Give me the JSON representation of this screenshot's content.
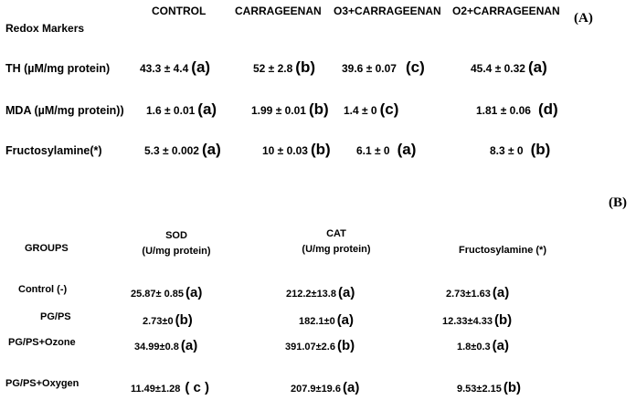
{
  "panelA": {
    "tag": "(A)",
    "row_header": "Redox Markers",
    "columns": [
      "CONTROL",
      "CARRAGEENAN",
      "O3+CARRAGEENAN",
      "O2+CARRAGEENAN"
    ],
    "rows": [
      {
        "label": "TH  (µM/mg protein)",
        "cells": [
          {
            "value": "43.3 ± 4.4",
            "letter": "(a)"
          },
          {
            "value": "52 ± 2.8",
            "letter": "(b)"
          },
          {
            "value": "39.6 ± 0.07",
            "letter": "(c)"
          },
          {
            "value": "45.4 ± 0.32",
            "letter": "(a)"
          }
        ]
      },
      {
        "label": "MDA (µM/mg protein))",
        "cells": [
          {
            "value": "1.6 ± 0.01",
            "letter": "(a)"
          },
          {
            "value": "1.99 ± 0.01",
            "letter": "(b)"
          },
          {
            "value": "1.4 ± 0",
            "letter": "(c)"
          },
          {
            "value": "1.81 ± 0.06",
            "letter": "(d)"
          }
        ]
      },
      {
        "label": "Fructosylamine(*)",
        "cells": [
          {
            "value": "5.3 ± 0.002",
            "letter": "(a)"
          },
          {
            "value": "10 ± 0.03",
            "letter": "(b)"
          },
          {
            "value": "6.1 ± 0",
            "letter": "(a)"
          },
          {
            "value": "8.3 ± 0",
            "letter": "(b)"
          }
        ]
      }
    ]
  },
  "panelB": {
    "tag": "(B)",
    "row_header": "GROUPS",
    "columns": [
      {
        "line1": "SOD",
        "line2": "(U/mg protein)"
      },
      {
        "line1": "CAT",
        "line2": "(U/mg protein)"
      },
      {
        "line1": "Fructosylamine (*)",
        "line2": ""
      }
    ],
    "rows": [
      {
        "label": "Control (-)",
        "cells": [
          {
            "value": "25.87± 0.85",
            "letter": "(a)"
          },
          {
            "value": "212.2±13.8",
            "letter": "(a)"
          },
          {
            "value": "2.73±1.63",
            "letter": "(a)"
          }
        ]
      },
      {
        "label": "PG/PS",
        "cells": [
          {
            "value": "2.73±0",
            "letter": "(b)"
          },
          {
            "value": "182.1±0",
            "letter": "(a)"
          },
          {
            "value": "12.33±4.33",
            "letter": "(b)"
          }
        ]
      },
      {
        "label": "PG/PS+Ozone",
        "cells": [
          {
            "value": "34.99±0.8",
            "letter": "(a)"
          },
          {
            "value": "391.07±2.6",
            "letter": "(b)"
          },
          {
            "value": "1.8±0.3",
            "letter": "(a)"
          }
        ]
      },
      {
        "label": "PG/PS+Oxygen",
        "cells": [
          {
            "value": "11.49±1.28",
            "letter": "( c )"
          },
          {
            "value": "207.9±19.6",
            "letter": "(a)"
          },
          {
            "value": "9.53±2.15",
            "letter": "(b)"
          }
        ]
      }
    ]
  }
}
